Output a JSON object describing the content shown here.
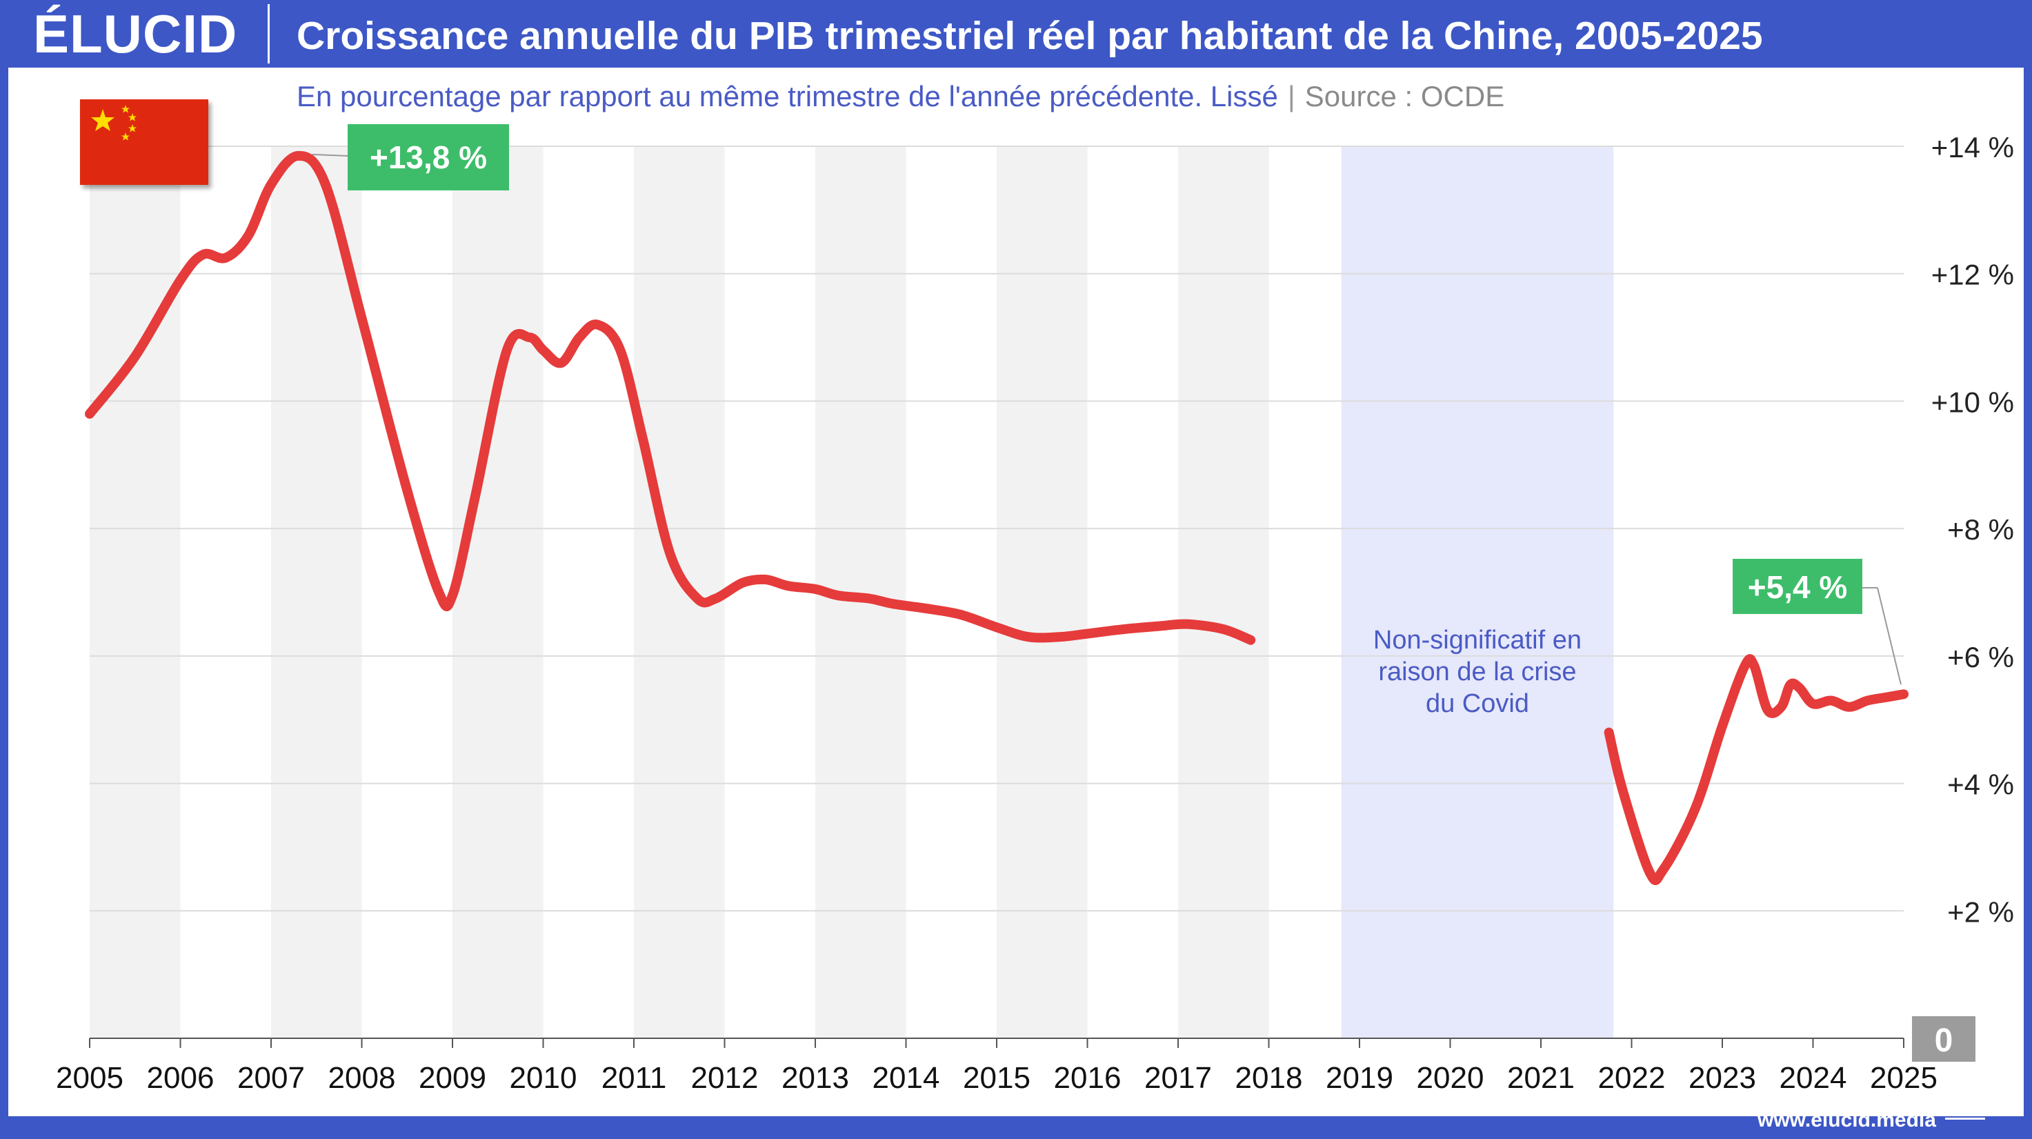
{
  "header": {
    "logo": "ÉLUCID",
    "title": "Croissance annuelle du PIB trimestriel réel par habitant de la Chine, 2005-2025"
  },
  "subtitle": {
    "text": "En pourcentage par rapport au même trimestre de l'année précédente. Lissé",
    "separator": "|",
    "source": "Source : OCDE"
  },
  "footer": {
    "url": "www.elucid.media"
  },
  "colors": {
    "brand_blue": "#3d57c6",
    "series_red": "#e63b3b",
    "covid_band": "#e6e8fb",
    "alt_band": "#f2f2f2",
    "label_green": "#3dbd6a",
    "zero_badge": "#9c9c9c",
    "covid_text": "#4a5bc4"
  },
  "icons": {
    "flag": "china-flag-icon",
    "footer": "elucid-logo-icon"
  },
  "chart_data": {
    "type": "line",
    "title": "Croissance annuelle du PIB trimestriel réel par habitant de la Chine, 2005-2025",
    "subtitle": "En pourcentage par rapport au même trimestre de l'année précédente. Lissé",
    "xlabel": "",
    "ylabel": "",
    "xlim": [
      2005,
      2025
    ],
    "ylim": [
      0,
      14
    ],
    "grid": true,
    "legend": "none",
    "x_ticks": [
      "2005",
      "2006",
      "2007",
      "2008",
      "2009",
      "2010",
      "2011",
      "2012",
      "2013",
      "2014",
      "2015",
      "2016",
      "2017",
      "2018",
      "2019",
      "2020",
      "2021",
      "2022",
      "2023",
      "2024",
      "2025"
    ],
    "y_ticks": [
      {
        "value": 2,
        "label": "+2 %"
      },
      {
        "value": 4,
        "label": "+4 %"
      },
      {
        "value": 6,
        "label": "+6 %"
      },
      {
        "value": 8,
        "label": "+8 %"
      },
      {
        "value": 10,
        "label": "+10 %"
      },
      {
        "value": 12,
        "label": "+12 %"
      },
      {
        "value": 14,
        "label": "+14 %"
      }
    ],
    "zero_label": "0",
    "shaded_years": [
      2005,
      2007,
      2009,
      2011,
      2013,
      2015,
      2017
    ],
    "covid_band": {
      "from": 2018.8,
      "to": 2021.8,
      "label_lines": [
        "Non-significatif en",
        "raison de la crise",
        "du Covid"
      ]
    },
    "series": [
      {
        "segments": [
          [
            [
              2005.0,
              9.8
            ],
            [
              2005.5,
              10.7
            ],
            [
              2006.0,
              11.9
            ],
            [
              2006.25,
              12.3
            ],
            [
              2006.5,
              12.25
            ],
            [
              2006.75,
              12.6
            ],
            [
              2007.0,
              13.4
            ],
            [
              2007.3,
              13.85
            ],
            [
              2007.6,
              13.4
            ],
            [
              2008.0,
              11.3
            ],
            [
              2008.5,
              8.6
            ],
            [
              2008.85,
              7.0
            ],
            [
              2009.0,
              6.95
            ],
            [
              2009.25,
              8.5
            ],
            [
              2009.6,
              10.8
            ],
            [
              2009.85,
              11.0
            ],
            [
              2010.0,
              10.8
            ],
            [
              2010.2,
              10.6
            ],
            [
              2010.4,
              11.0
            ],
            [
              2010.6,
              11.2
            ],
            [
              2010.85,
              10.8
            ],
            [
              2011.1,
              9.4
            ],
            [
              2011.4,
              7.6
            ],
            [
              2011.7,
              6.9
            ],
            [
              2011.9,
              6.9
            ],
            [
              2012.2,
              7.15
            ],
            [
              2012.45,
              7.2
            ],
            [
              2012.7,
              7.1
            ],
            [
              2013.0,
              7.05
            ],
            [
              2013.25,
              6.95
            ],
            [
              2013.6,
              6.9
            ],
            [
              2013.85,
              6.82
            ],
            [
              2014.2,
              6.75
            ],
            [
              2014.6,
              6.65
            ],
            [
              2015.0,
              6.45
            ],
            [
              2015.35,
              6.3
            ],
            [
              2015.7,
              6.3
            ],
            [
              2016.0,
              6.35
            ],
            [
              2016.4,
              6.42
            ],
            [
              2016.8,
              6.47
            ],
            [
              2017.1,
              6.5
            ],
            [
              2017.5,
              6.42
            ],
            [
              2017.8,
              6.25
            ]
          ],
          [
            [
              2021.75,
              4.8
            ],
            [
              2021.9,
              3.9
            ],
            [
              2022.2,
              2.6
            ],
            [
              2022.35,
              2.65
            ],
            [
              2022.7,
              3.6
            ],
            [
              2023.0,
              4.9
            ],
            [
              2023.25,
              5.85
            ],
            [
              2023.35,
              5.85
            ],
            [
              2023.5,
              5.15
            ],
            [
              2023.65,
              5.2
            ],
            [
              2023.75,
              5.55
            ],
            [
              2023.85,
              5.5
            ],
            [
              2024.0,
              5.25
            ],
            [
              2024.2,
              5.3
            ],
            [
              2024.4,
              5.2
            ],
            [
              2024.6,
              5.3
            ],
            [
              2024.8,
              5.35
            ],
            [
              2025.0,
              5.4
            ]
          ]
        ]
      }
    ],
    "annotations": [
      {
        "label": "+13,8 %",
        "x": 2007.3,
        "y": 13.85
      },
      {
        "label": "+5,4 %",
        "x": 2025.0,
        "y": 5.4
      }
    ]
  }
}
